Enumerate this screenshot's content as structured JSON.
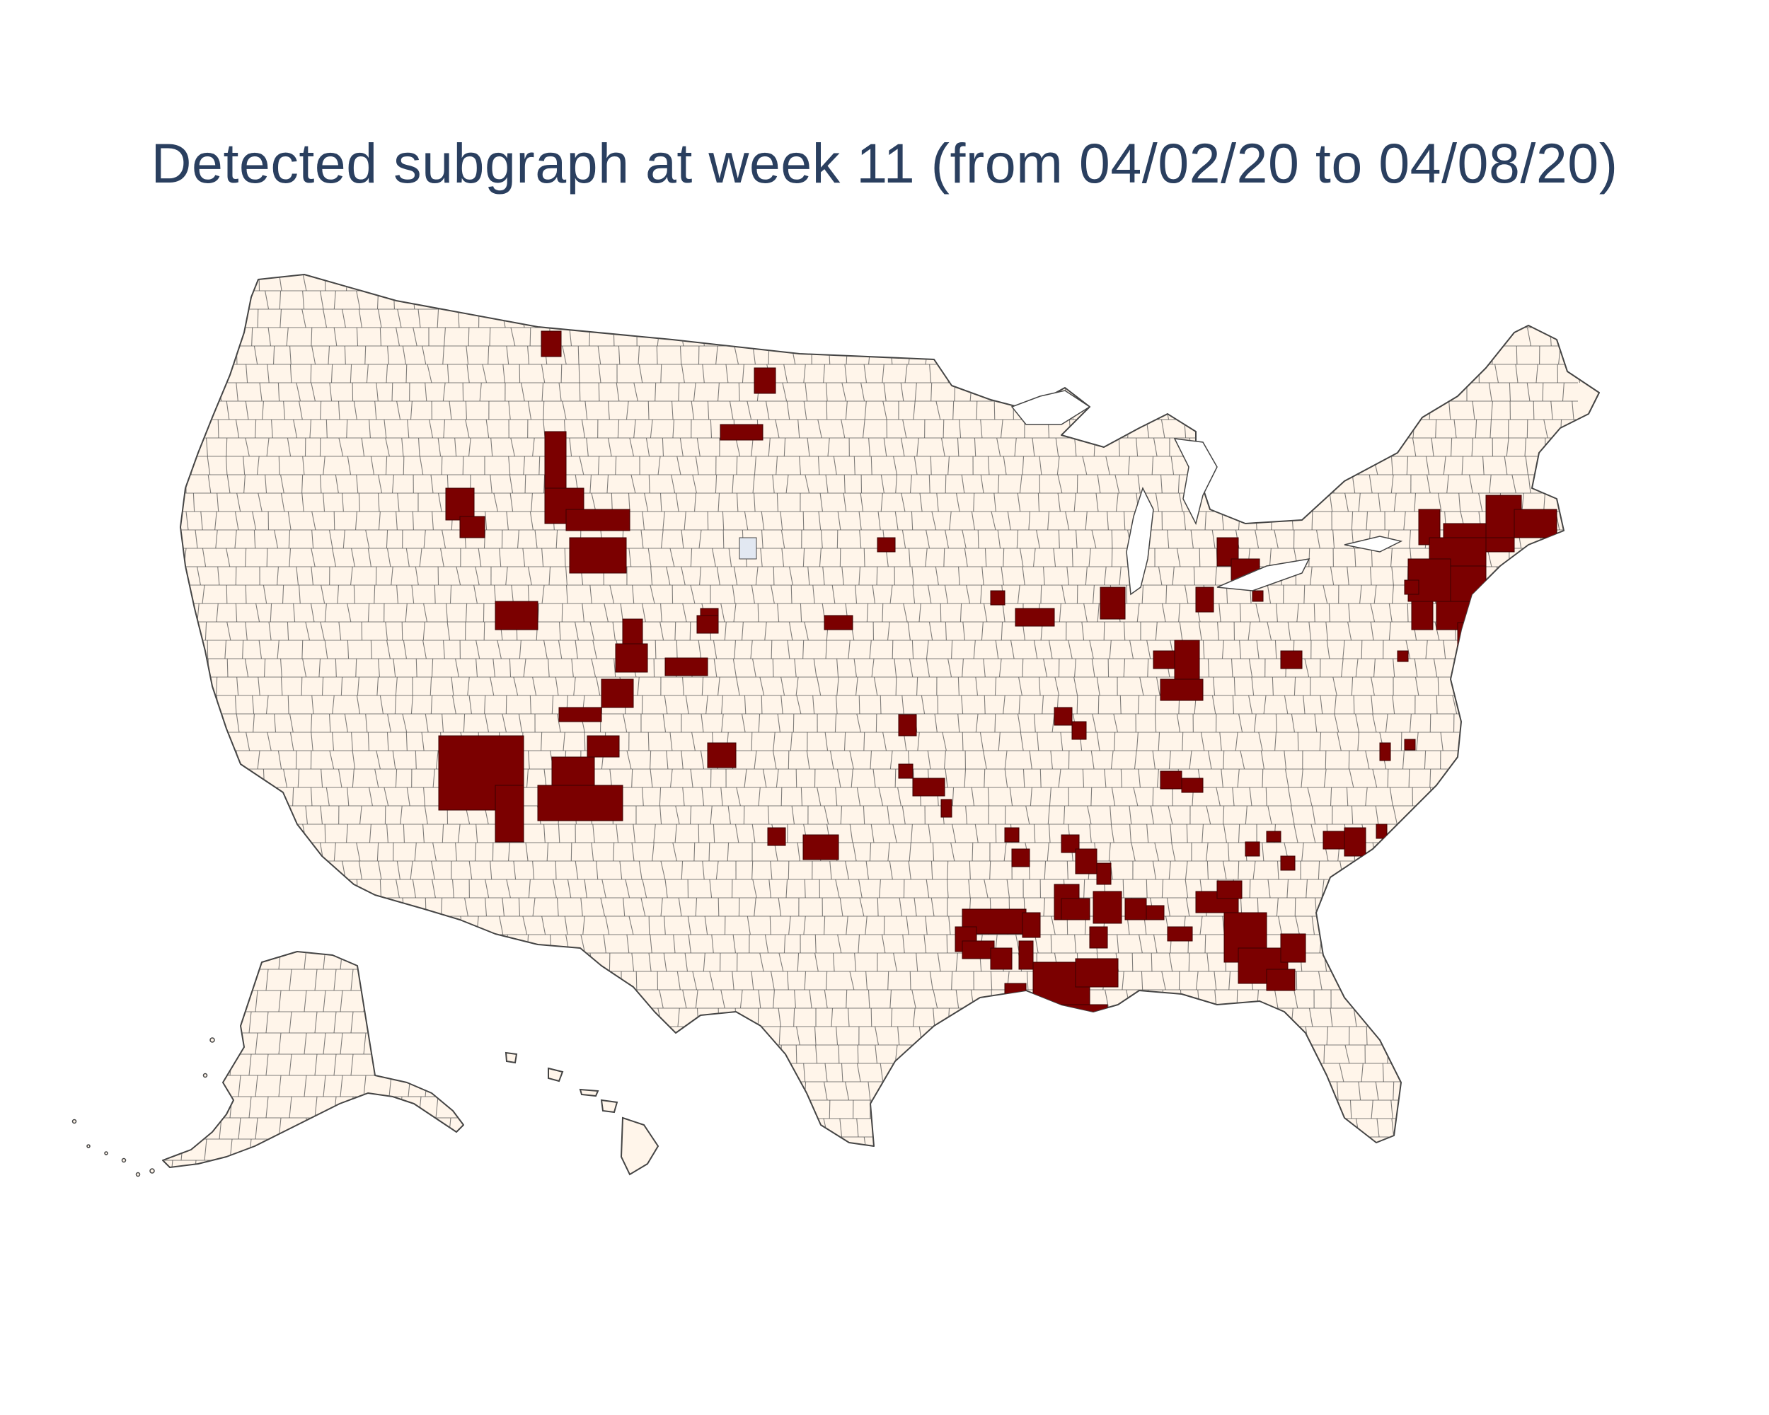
{
  "title": "Detected subgraph at week 11 (from 04/02/20 to 04/08/20)",
  "colors": {
    "background": "#ffffff",
    "land": "#fff5ea",
    "county_border": "#444444",
    "highlighted": "#7b0000",
    "missing_data": "#e2e8f2",
    "water": "#ffffff"
  },
  "map": {
    "projection": "albers-usa",
    "regions": [
      "contiguous-us",
      "alaska",
      "hawaii"
    ],
    "legend": "none"
  }
}
